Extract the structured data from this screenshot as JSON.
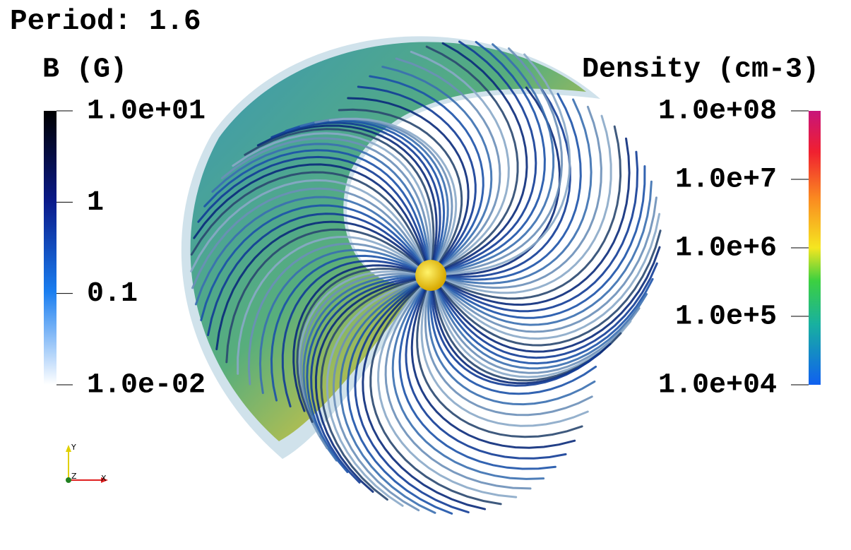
{
  "title": "Period: 1.6",
  "colorbars": [
    {
      "title": "B (G)",
      "tick_labels": [
        "1.0e+01",
        "1",
        "0.1",
        "1.0e-02"
      ]
    },
    {
      "title": "Density (cm-3)",
      "tick_labels": [
        "1.0e+08",
        "1.0e+7",
        "1.0e+6",
        "1.0e+5",
        "1.0e+04"
      ]
    }
  ],
  "axes_triad": {
    "labels": [
      "Y",
      "Z",
      "X"
    ]
  }
}
